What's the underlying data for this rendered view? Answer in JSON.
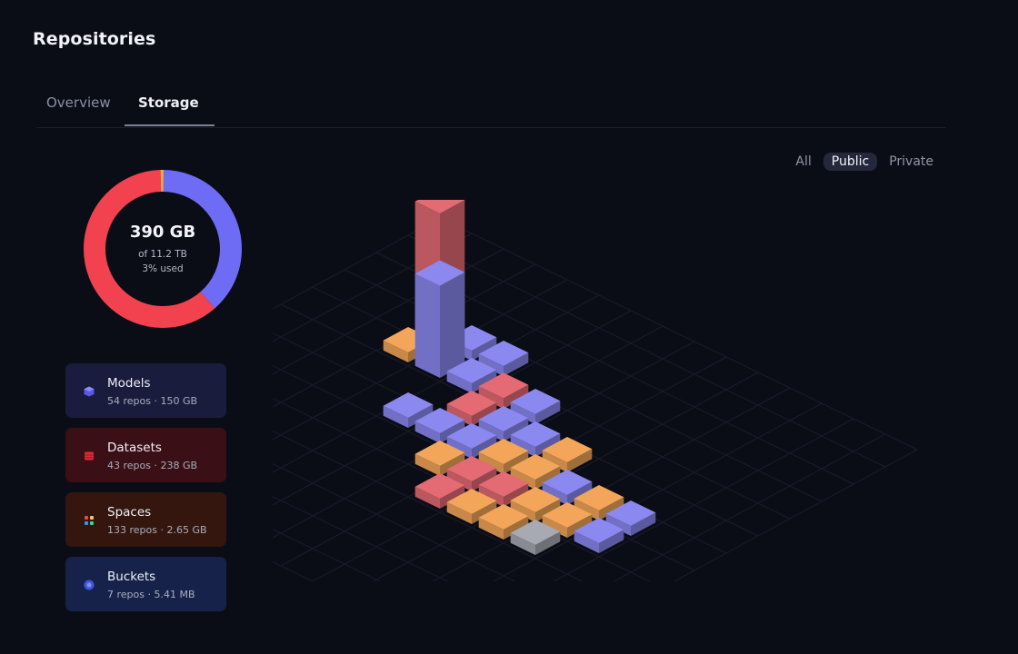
{
  "header": {
    "title": "Repositories"
  },
  "tabs": [
    {
      "label": "Overview",
      "active": false
    },
    {
      "label": "Storage",
      "active": true
    }
  ],
  "filter": {
    "options": [
      "All",
      "Public",
      "Private"
    ],
    "selected": "Public"
  },
  "storage": {
    "used": "390 GB",
    "total": "of 11.2 TB",
    "percent_label": "3% used",
    "breakdown": [
      {
        "type": "datasets",
        "fraction": 0.61,
        "color": "#f2424f"
      },
      {
        "type": "models",
        "fraction": 0.385,
        "color": "#6e6cf5"
      },
      {
        "type": "spaces",
        "fraction": 0.007,
        "color": "#f5a04a"
      },
      {
        "type": "buckets",
        "fraction": 0.001,
        "color": "#4a76f0"
      }
    ]
  },
  "cards": [
    {
      "name": "Models",
      "meta": "54 repos · 150 GB",
      "icon": "cube-icon",
      "color": "#6e6cf5"
    },
    {
      "name": "Datasets",
      "meta": "43 repos · 238 GB",
      "icon": "database-icon",
      "color": "#e0303e"
    },
    {
      "name": "Spaces",
      "meta": "133 repos · 2.65 GB",
      "icon": "grid-icon",
      "color": "#f08a3c"
    },
    {
      "name": "Buckets",
      "meta": "7 repos · 5.41 MB",
      "icon": "bucket-icon",
      "color": "#4a62e8"
    }
  ],
  "colors": {
    "models": "#8b88f0",
    "datasets": "#e46a73",
    "spaces": "#f3a65a",
    "buckets": "#a7a9b3"
  },
  "iso_repos": [
    {
      "type": "datasets",
      "level": 1.0
    },
    {
      "type": "models",
      "level": 0.7
    },
    {
      "type": "datasets",
      "level": 0.08
    },
    {
      "type": "models",
      "level": 0.06
    },
    {
      "type": "models",
      "level": 0.06
    },
    {
      "type": "spaces",
      "level": 0.06
    },
    {
      "type": "models",
      "level": 0.06
    },
    {
      "type": "models",
      "level": 0.06
    },
    {
      "type": "datasets",
      "level": 0.06
    },
    {
      "type": "models",
      "level": 0.06
    },
    {
      "type": "models",
      "level": 0.06
    },
    {
      "type": "spaces",
      "level": 0.06
    },
    {
      "type": "models",
      "level": 0.06
    },
    {
      "type": "models",
      "level": 0.06
    },
    {
      "type": "models",
      "level": 0.06
    },
    {
      "type": "spaces",
      "level": 0.06
    },
    {
      "type": "spaces",
      "level": 0.06
    },
    {
      "type": "models",
      "level": 0.06
    },
    {
      "type": "spaces",
      "level": 0.06
    },
    {
      "type": "models",
      "level": 0.06
    },
    {
      "type": "spaces",
      "level": 0.06
    },
    {
      "type": "datasets",
      "level": 0.06
    },
    {
      "type": "datasets",
      "level": 0.06
    },
    {
      "type": "spaces",
      "level": 0.06
    },
    {
      "type": "spaces",
      "level": 0.06
    },
    {
      "type": "models",
      "level": 0.06
    },
    {
      "type": "datasets",
      "level": 0.06
    },
    {
      "type": "spaces",
      "level": 0.06
    },
    {
      "type": "spaces",
      "level": 0.06
    },
    {
      "type": "buckets",
      "level": 0.06
    }
  ]
}
